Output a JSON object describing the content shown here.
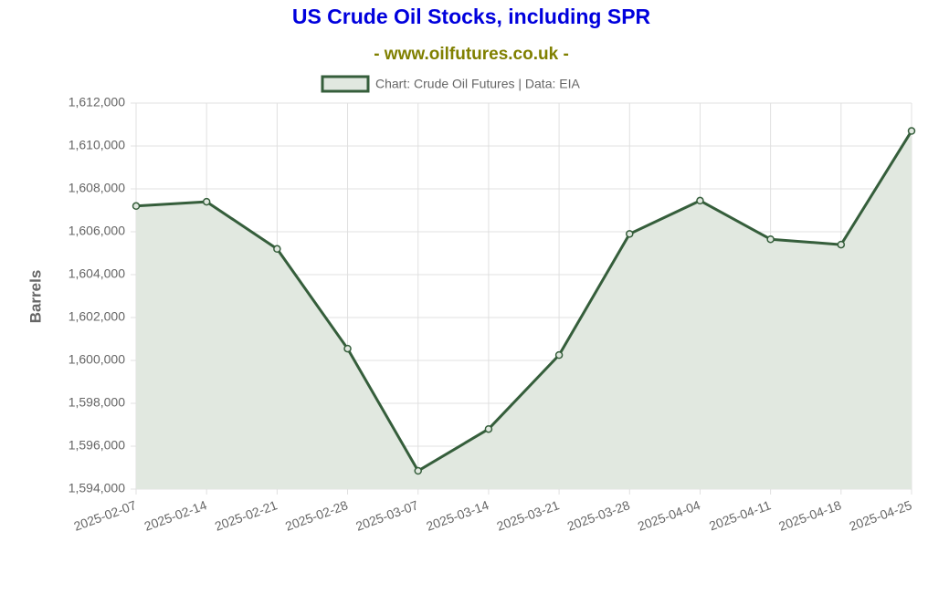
{
  "chart_data": {
    "type": "line",
    "title": "US Crude Oil Stocks, including SPR",
    "subtitle": "- www.oilfutures.co.uk -",
    "y_label": "Barrels",
    "categories": [
      "2025-02-07",
      "2025-02-14",
      "2025-02-21",
      "2025-02-28",
      "2025-03-07",
      "2025-03-14",
      "2025-03-21",
      "2025-03-28",
      "2025-04-04",
      "2025-04-11",
      "2025-04-18",
      "2025-04-25"
    ],
    "series": [
      {
        "name": "Chart: Crude Oil Futures | Data: EIA",
        "color": "#355e3b",
        "fill": "#e1e8e0",
        "values": [
          1607200,
          1607400,
          1605200,
          1600550,
          1594850,
          1596800,
          1600250,
          1605900,
          1607450,
          1605650,
          1605400,
          1610700
        ]
      }
    ],
    "ylim": [
      1594000,
      1612000
    ],
    "yticks": [
      {
        "value": 1594000,
        "label": "1,594,000"
      },
      {
        "value": 1596000,
        "label": "1,596,000"
      },
      {
        "value": 1598000,
        "label": "1,598,000"
      },
      {
        "value": 1600000,
        "label": "1,600,000"
      },
      {
        "value": 1602000,
        "label": "1,602,000"
      },
      {
        "value": 1604000,
        "label": "1,604,000"
      },
      {
        "value": 1606000,
        "label": "1,606,000"
      },
      {
        "value": 1608000,
        "label": "1,608,000"
      },
      {
        "value": 1610000,
        "label": "1,610,000"
      },
      {
        "value": 1612000,
        "label": "1,612,000"
      }
    ],
    "grid": true,
    "legend": "top"
  }
}
